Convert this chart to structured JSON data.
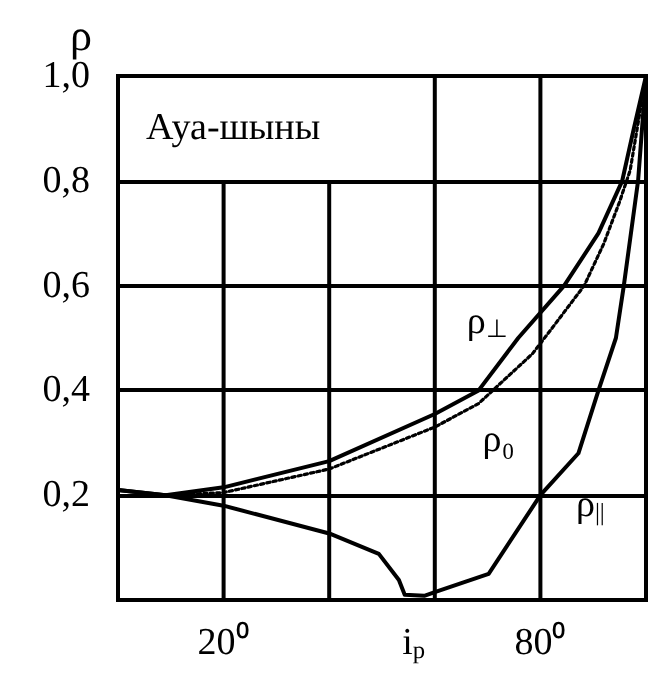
{
  "chart_data": {
    "type": "line",
    "ylabel": "ρ",
    "annotations": [
      "Ауа-шыны"
    ],
    "xlim": [
      0,
      100
    ],
    "xticks": [
      {
        "value": 20,
        "label": "20⁰"
      },
      {
        "value": 40,
        "label": null
      },
      {
        "value": 56,
        "label": "i$_{p}$"
      },
      {
        "value": 60,
        "label": null
      },
      {
        "value": 80,
        "label": "80⁰"
      }
    ],
    "ylim": [
      0,
      1
    ],
    "yticks": [
      {
        "value": 0.2,
        "label": "0,2"
      },
      {
        "value": 0.4,
        "label": "0,4"
      },
      {
        "value": 0.6,
        "label": "0,6"
      },
      {
        "value": 0.8,
        "label": "0,8"
      },
      {
        "value": 1.0,
        "label": "1,0"
      }
    ],
    "grid": true,
    "legend": false,
    "marker": "none",
    "series": [
      {
        "name": "ρ$_{⊥}$",
        "color": "#000000",
        "line_style": "solid",
        "x": [
          0,
          9,
          20,
          40,
          60,
          68.3,
          75.8,
          84.5,
          91,
          95.5,
          97.7,
          100
        ],
        "values": [
          0.21,
          0.2,
          0.215,
          0.265,
          0.355,
          0.4,
          0.5,
          0.6,
          0.7,
          0.8,
          0.9,
          1.0
        ]
      },
      {
        "name": "ρ₀",
        "color": "#000000",
        "line_style": "dotted",
        "x": [
          9,
          20,
          40,
          60,
          68.3,
          78.5,
          82.3,
          88.3,
          92,
          95,
          97,
          100
        ],
        "values": [
          0.2,
          0.205,
          0.25,
          0.33,
          0.375,
          0.47,
          0.52,
          0.6,
          0.68,
          0.76,
          0.82,
          1.0
        ]
      },
      {
        "name": "ρ$_{||}$",
        "color": "#000000",
        "line_style": "solid",
        "x": [
          0,
          9,
          20,
          40,
          49.4,
          53.2,
          54.3,
          58,
          60,
          70.2,
          80,
          87.2,
          91,
          94.3,
          95.8,
          98.5,
          100
        ],
        "values": [
          0.21,
          0.2,
          0.18,
          0.127,
          0.088,
          0.038,
          0.01,
          0.008,
          0.015,
          0.05,
          0.2,
          0.28,
          0.4,
          0.5,
          0.6,
          0.8,
          1.0
        ]
      }
    ]
  }
}
